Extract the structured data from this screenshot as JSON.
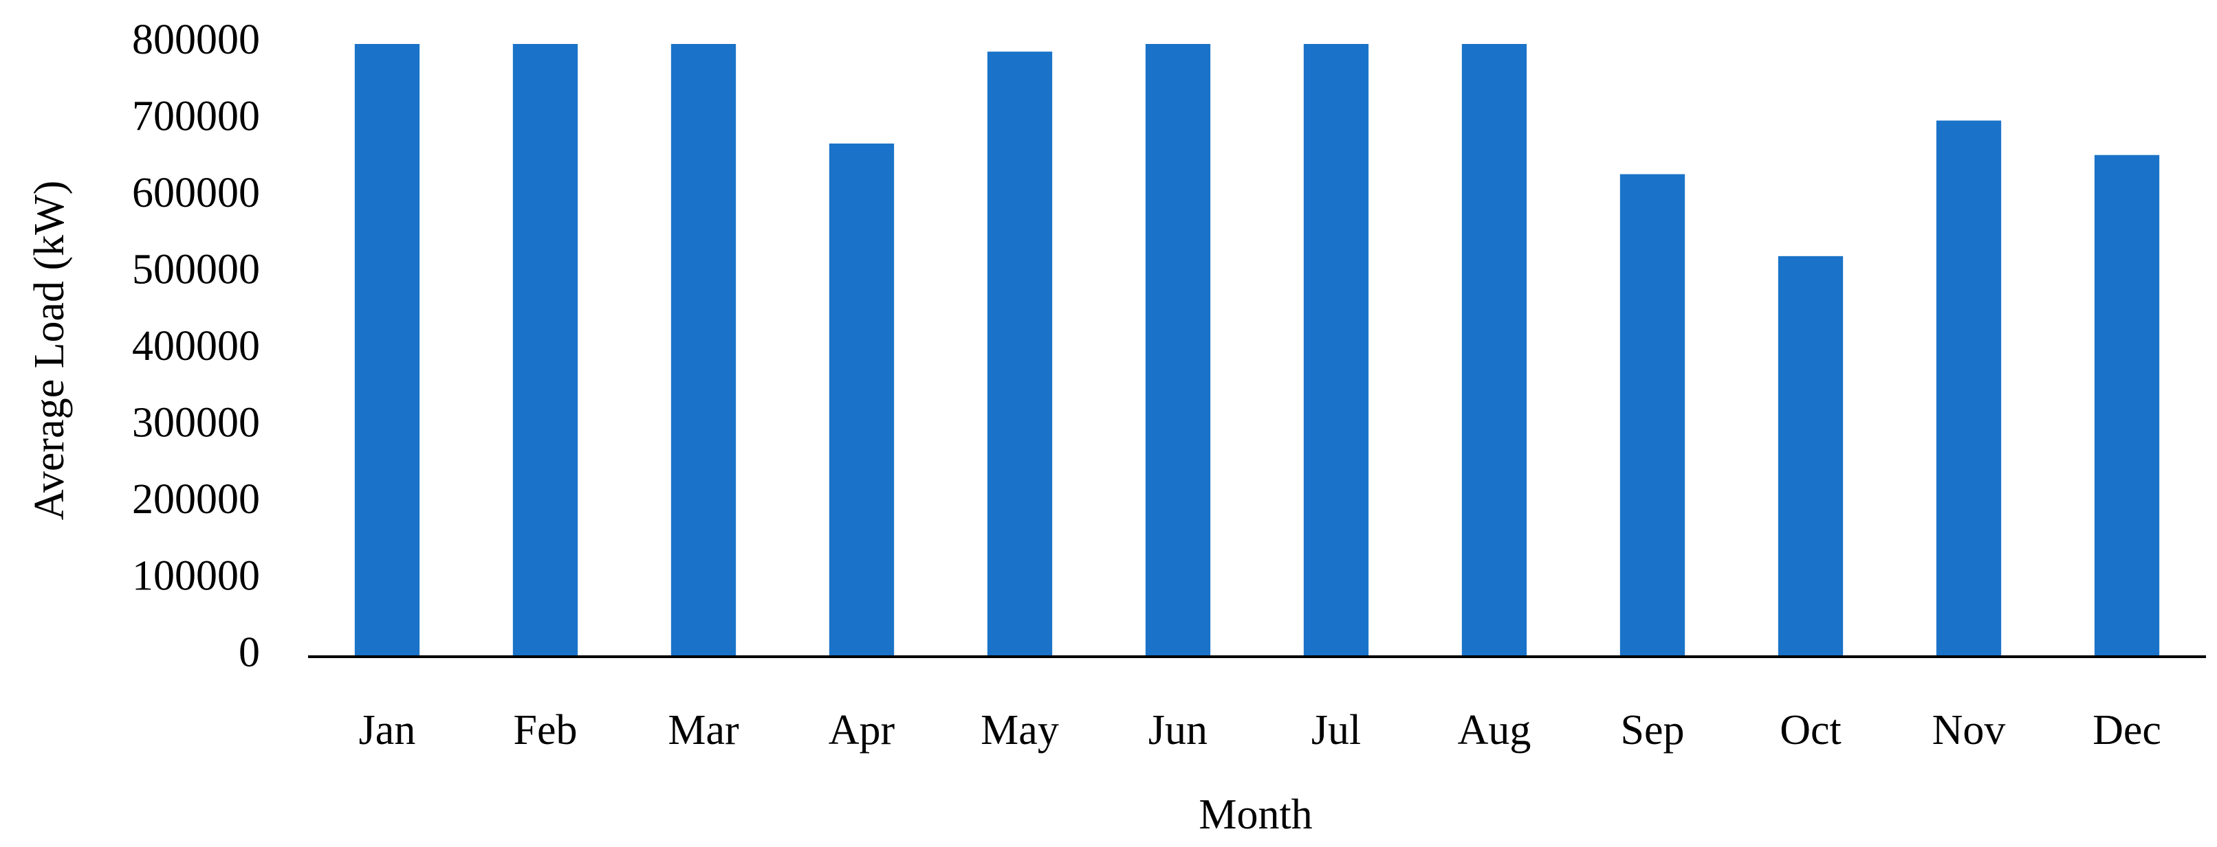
{
  "chart_data": {
    "type": "bar",
    "x_label": "Month",
    "y_label": "Average Load (kW)",
    "categories": [
      "Jan",
      "Feb",
      "Mar",
      "Apr",
      "May",
      "Jun",
      "Jul",
      "Aug",
      "Sep",
      "Oct",
      "Nov",
      "Dec"
    ],
    "values": [
      800000,
      800000,
      800000,
      670000,
      790000,
      800000,
      800000,
      800000,
      630000,
      523000,
      700000,
      655000
    ],
    "color": "#1a73c8",
    "ylim": [
      0,
      800000
    ],
    "yticks": [
      0,
      100000,
      200000,
      300000,
      400000,
      500000,
      600000,
      700000,
      800000
    ],
    "grid": false
  }
}
